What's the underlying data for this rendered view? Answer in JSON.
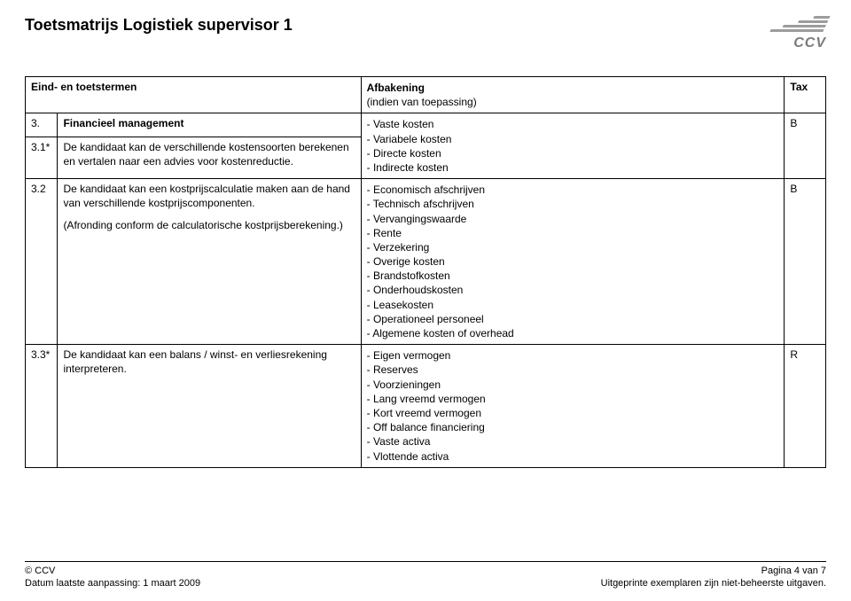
{
  "doc_title": "Toetsmatrijs Logistiek supervisor 1",
  "logo_text": "CCV",
  "table": {
    "headers": {
      "col1": "Eind- en toetstermen",
      "afbakening": "Afbakening",
      "afbakening_sub": "(indien van toepassing)",
      "tax": "Tax"
    },
    "section": {
      "num": "3.",
      "title": "Financieel management"
    },
    "rows": [
      {
        "num": "3.1*",
        "desc": "De kandidaat kan de verschillende kostensoorten berekenen en vertalen naar een advies voor kostenreductie.",
        "items": [
          "Vaste kosten",
          "Variabele kosten",
          "Directe kosten",
          "Indirecte kosten"
        ],
        "tax": "B"
      },
      {
        "num": "3.2",
        "desc": "De kandidaat kan een kostprijscalculatie maken aan de hand van verschillende kostprijscomponenten.",
        "desc2": "(Afronding conform de calculatorische kostprijsberekening.)",
        "items": [
          "Economisch afschrijven",
          "Technisch afschrijven",
          "Vervangingswaarde",
          "Rente",
          "Verzekering",
          "Overige kosten",
          "Brandstofkosten",
          "Onderhoudskosten",
          "Leasekosten",
          "Operationeel personeel",
          "Algemene kosten of overhead"
        ],
        "tax": "B"
      },
      {
        "num": "3.3*",
        "desc": "De kandidaat kan een balans / winst- en verliesrekening interpreteren.",
        "items": [
          "Eigen vermogen",
          "Reserves",
          "Voorzieningen",
          "Lang vreemd vermogen",
          "Kort vreemd vermogen",
          "Off balance financiering",
          "Vaste activa",
          "Vlottende activa"
        ],
        "tax": "R"
      }
    ]
  },
  "footer": {
    "copyright": "© CCV",
    "pagina": "Pagina 4 van 7",
    "datum": "Datum laatste aanpassing: 1 maart 2009",
    "note": "Uitgeprinte exemplaren zijn niet-beheerste uitgaven."
  }
}
